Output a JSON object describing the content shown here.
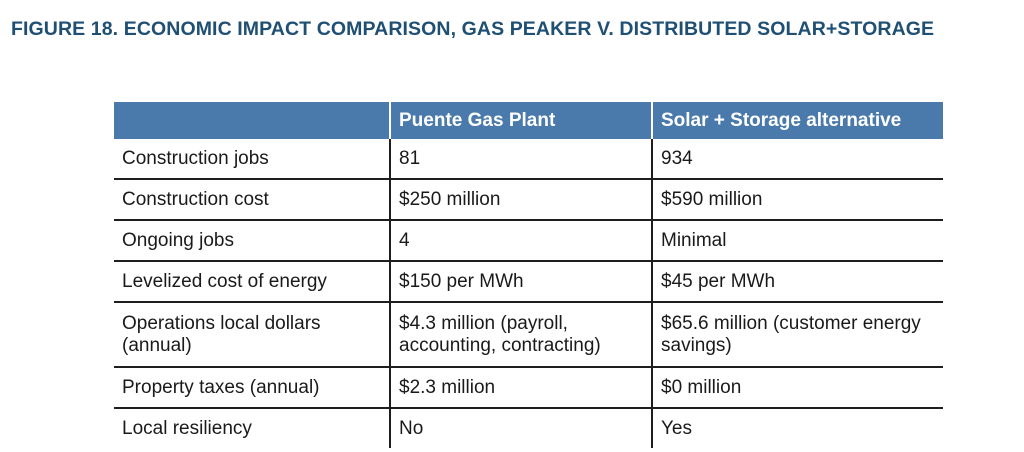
{
  "figure": {
    "title": "FIGURE 18. ECONOMIC IMPACT COMPARISON, GAS PEAKER V. DISTRIBUTED SOLAR+STORAGE"
  },
  "table": {
    "headers": [
      "",
      "Puente Gas Plant",
      "Solar + Storage alternative"
    ],
    "rows": [
      [
        "Construction jobs",
        "81",
        "934"
      ],
      [
        "Construction cost",
        "$250 million",
        "$590 million"
      ],
      [
        "Ongoing jobs",
        "4",
        "Minimal"
      ],
      [
        "Levelized cost of energy",
        "$150 per MWh",
        "$45 per MWh"
      ],
      [
        "Operations local dollars (annual)",
        "$4.3 million (payroll, accounting, contracting)",
        "$65.6 million (customer energy savings)"
      ],
      [
        "Property taxes (annual)",
        "$2.3 million",
        "$0 million"
      ],
      [
        "Local resiliency",
        "No",
        "Yes"
      ]
    ]
  },
  "colors": {
    "title": "#1f4f73",
    "header_bg": "#4a7aab",
    "header_text": "#ffffff",
    "rule": "#1e1e1e"
  }
}
